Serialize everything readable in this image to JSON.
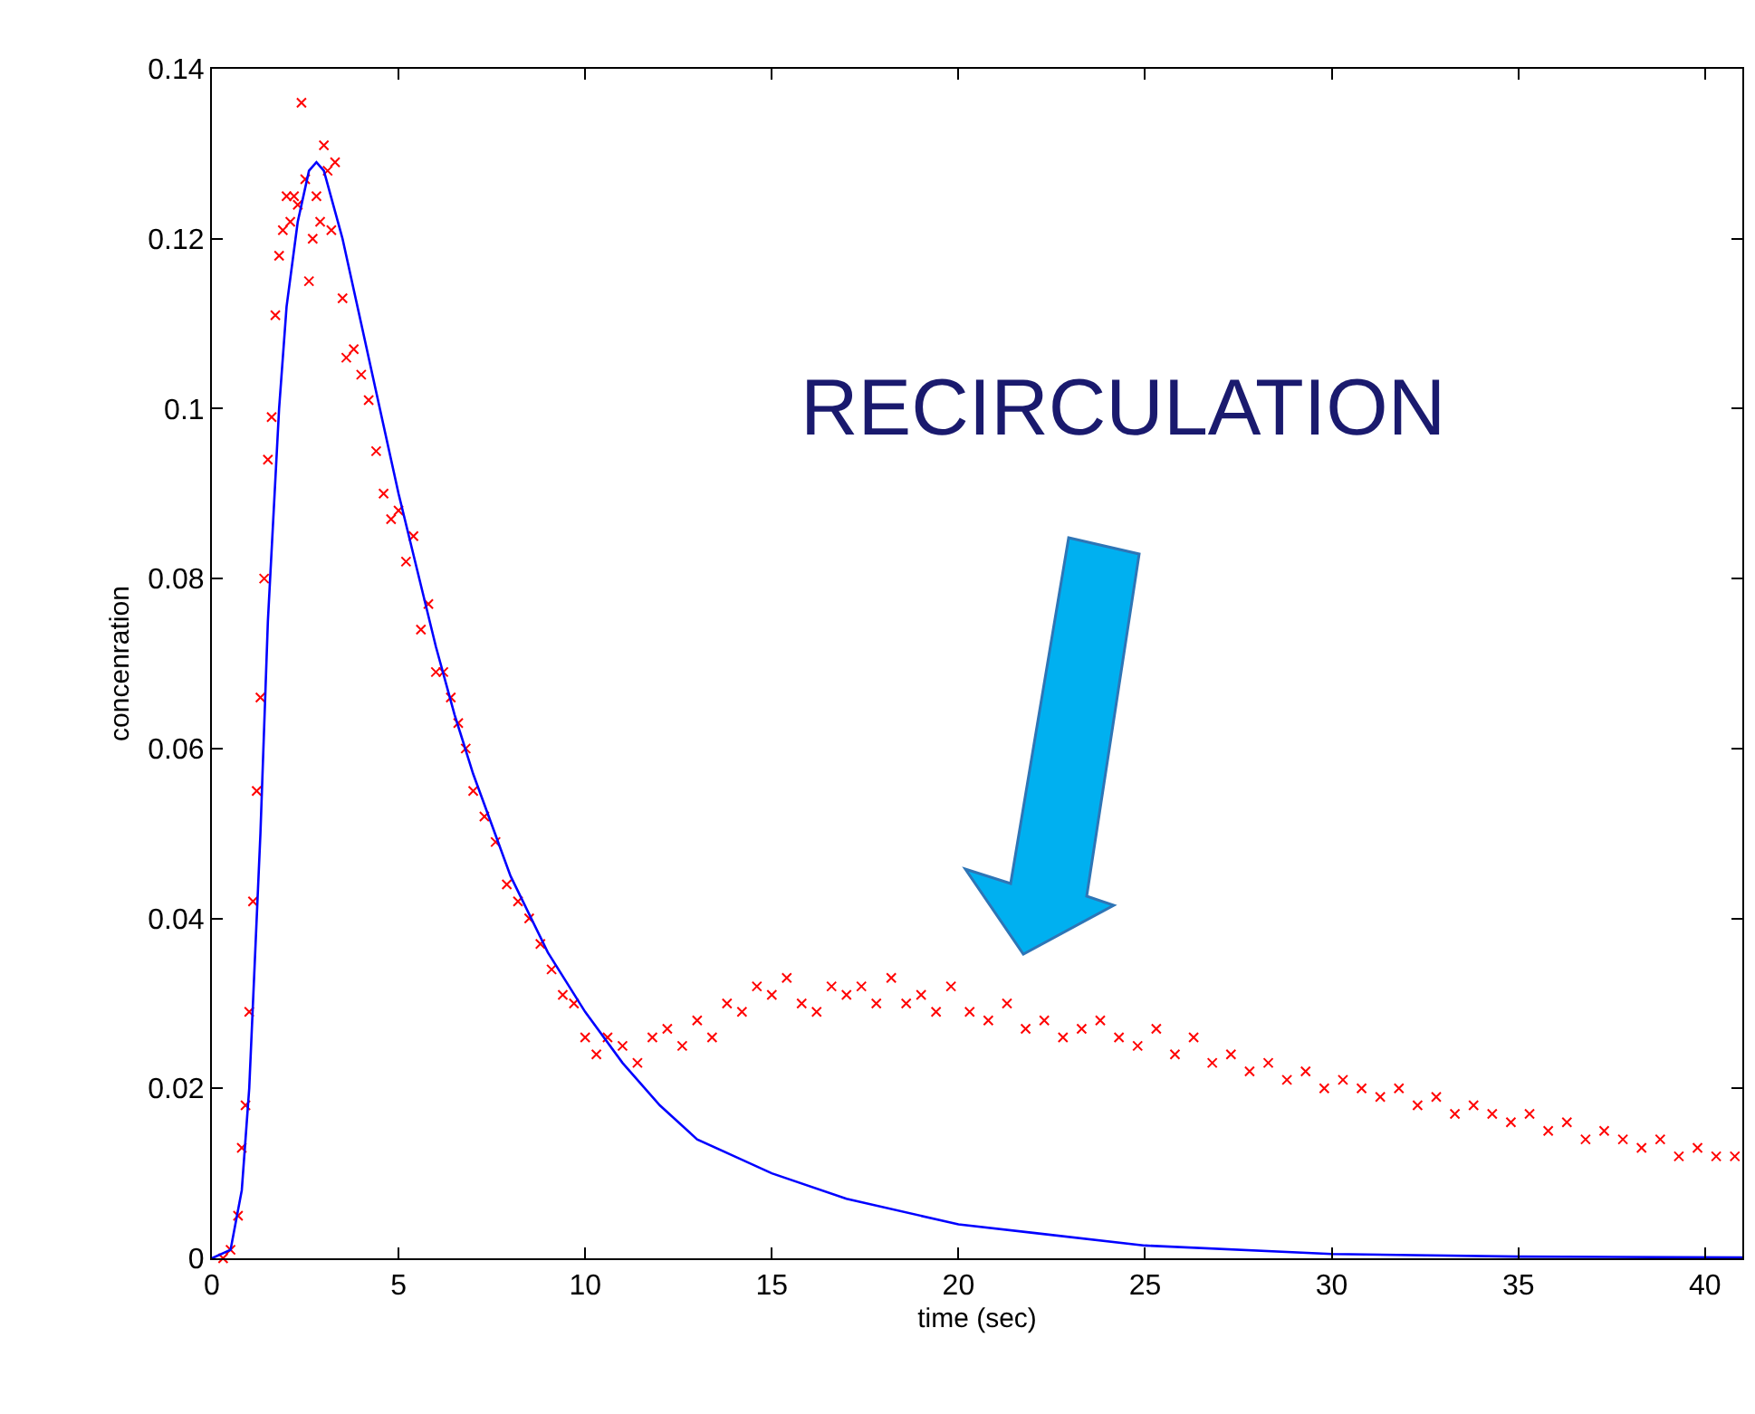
{
  "chart_data": {
    "type": "scatter",
    "xlabel": "time (sec)",
    "ylabel": "concenration",
    "xlim": [
      0,
      41
    ],
    "ylim": [
      0,
      0.14
    ],
    "xticks": [
      0,
      5,
      10,
      15,
      20,
      25,
      30,
      35,
      40
    ],
    "yticks": [
      0,
      0.02,
      0.04,
      0.06,
      0.08,
      {
        "value": 0.1,
        "label": "0.1"
      },
      0.12,
      0.14
    ],
    "annotations": [
      "RECIRCULATION"
    ],
    "series": [
      {
        "marker": "cross",
        "color": "#ff0000",
        "x": [
          0.3,
          0.5,
          0.7,
          0.8,
          0.9,
          1.0,
          1.1,
          1.2,
          1.3,
          1.4,
          1.5,
          1.6,
          1.7,
          1.8,
          1.9,
          2.0,
          2.1,
          2.2,
          2.3,
          2.4,
          2.5,
          2.6,
          2.7,
          2.8,
          2.9,
          3.0,
          3.1,
          3.2,
          3.3,
          3.5,
          3.6,
          3.8,
          4.0,
          4.2,
          4.4,
          4.6,
          4.8,
          5.0,
          5.2,
          5.4,
          5.6,
          5.8,
          6.0,
          6.2,
          6.4,
          6.6,
          6.8,
          7.0,
          7.3,
          7.6,
          7.9,
          8.2,
          8.5,
          8.8,
          9.1,
          9.4,
          9.7,
          10.0,
          10.3,
          10.6,
          11.0,
          11.4,
          11.8,
          12.2,
          12.6,
          13.0,
          13.4,
          13.8,
          14.2,
          14.6,
          15.0,
          15.4,
          15.8,
          16.2,
          16.6,
          17.0,
          17.4,
          17.8,
          18.2,
          18.6,
          19.0,
          19.4,
          19.8,
          20.3,
          20.8,
          21.3,
          21.8,
          22.3,
          22.8,
          23.3,
          23.8,
          24.3,
          24.8,
          25.3,
          25.8,
          26.3,
          26.8,
          27.3,
          27.8,
          28.3,
          28.8,
          29.3,
          29.8,
          30.3,
          30.8,
          31.3,
          31.8,
          32.3,
          32.8,
          33.3,
          33.8,
          34.3,
          34.8,
          35.3,
          35.8,
          36.3,
          36.8,
          37.3,
          37.8,
          38.3,
          38.8,
          39.3,
          39.8,
          40.3,
          40.8
        ],
        "values": [
          0.0,
          0.001,
          0.005,
          0.013,
          0.018,
          0.029,
          0.042,
          0.055,
          0.066,
          0.08,
          0.094,
          0.099,
          0.111,
          0.118,
          0.121,
          0.125,
          0.122,
          0.125,
          0.124,
          0.136,
          0.127,
          0.115,
          0.12,
          0.125,
          0.122,
          0.131,
          0.128,
          0.121,
          0.129,
          0.113,
          0.106,
          0.107,
          0.104,
          0.101,
          0.095,
          0.09,
          0.087,
          0.088,
          0.082,
          0.085,
          0.074,
          0.077,
          0.069,
          0.069,
          0.066,
          0.063,
          0.06,
          0.055,
          0.052,
          0.049,
          0.044,
          0.042,
          0.04,
          0.037,
          0.034,
          0.031,
          0.03,
          0.026,
          0.024,
          0.026,
          0.025,
          0.023,
          0.026,
          0.027,
          0.025,
          0.028,
          0.026,
          0.03,
          0.029,
          0.032,
          0.031,
          0.033,
          0.03,
          0.029,
          0.032,
          0.031,
          0.032,
          0.03,
          0.033,
          0.03,
          0.031,
          0.029,
          0.032,
          0.029,
          0.028,
          0.03,
          0.027,
          0.028,
          0.026,
          0.027,
          0.028,
          0.026,
          0.025,
          0.027,
          0.024,
          0.026,
          0.023,
          0.024,
          0.022,
          0.023,
          0.021,
          0.022,
          0.02,
          0.021,
          0.02,
          0.019,
          0.02,
          0.018,
          0.019,
          0.017,
          0.018,
          0.017,
          0.016,
          0.017,
          0.015,
          0.016,
          0.014,
          0.015,
          0.014,
          0.013,
          0.014,
          0.012,
          0.013,
          0.012,
          0.012
        ]
      },
      {
        "type": "line",
        "color": "#0000ff",
        "line_style": "solid",
        "marker": "none",
        "x": [
          0,
          0.5,
          0.8,
          1.0,
          1.3,
          1.5,
          1.8,
          2.0,
          2.3,
          2.6,
          2.8,
          3.0,
          3.5,
          4.0,
          4.5,
          5.0,
          5.5,
          6.0,
          6.5,
          7.0,
          7.5,
          8.0,
          9.0,
          10.0,
          11.0,
          12.0,
          13.0,
          14.0,
          15.0,
          17.0,
          20.0,
          22.0,
          25.0,
          30.0,
          35.0,
          41.0
        ],
        "values": [
          0,
          0.001,
          0.008,
          0.02,
          0.05,
          0.075,
          0.1,
          0.112,
          0.122,
          0.128,
          0.129,
          0.128,
          0.12,
          0.11,
          0.1,
          0.09,
          0.081,
          0.072,
          0.064,
          0.057,
          0.051,
          0.045,
          0.036,
          0.029,
          0.023,
          0.018,
          0.014,
          0.012,
          0.01,
          0.007,
          0.004,
          0.003,
          0.0015,
          0.0005,
          0.0002,
          0.0001
        ]
      }
    ]
  }
}
